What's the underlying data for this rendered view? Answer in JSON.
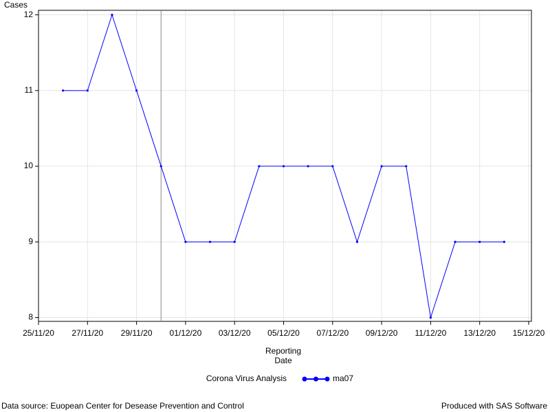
{
  "chart_data": {
    "type": "line",
    "ylabel": "Cases",
    "xlabel": [
      "Reporting",
      "Date"
    ],
    "x": [
      "26/11/20",
      "27/11/20",
      "28/11/20",
      "29/11/20",
      "30/11/20",
      "01/12/20",
      "02/12/20",
      "03/12/20",
      "04/12/20",
      "05/12/20",
      "06/12/20",
      "07/12/20",
      "08/12/20",
      "09/12/20",
      "10/12/20",
      "11/12/20",
      "12/12/20",
      "13/12/20",
      "14/12/20"
    ],
    "series": [
      {
        "name": "ma07",
        "color": "#0000ff",
        "values": [
          11,
          11,
          12,
          11,
          10,
          9,
          9,
          9,
          10,
          10,
          10,
          10,
          9,
          10,
          10,
          8,
          9,
          9,
          9
        ]
      }
    ],
    "legend_title": "Corona Virus Analysis",
    "xlim": [
      "25/11/20",
      "15/12/20"
    ],
    "xticks": [
      "25/11/20",
      "27/11/20",
      "29/11/20",
      "01/12/20",
      "03/12/20",
      "05/12/20",
      "07/12/20",
      "09/12/20",
      "11/12/20",
      "13/12/20",
      "15/12/20"
    ],
    "ylim": [
      7.95,
      12.06
    ],
    "yticks": [
      8,
      9,
      10,
      11,
      12
    ],
    "reference_line_x": "30/11/20",
    "grid": true,
    "footnote_left": "Data source: Euopean Center for Desease Prevention and Control",
    "footnote_right": "Produced with SAS Software"
  }
}
